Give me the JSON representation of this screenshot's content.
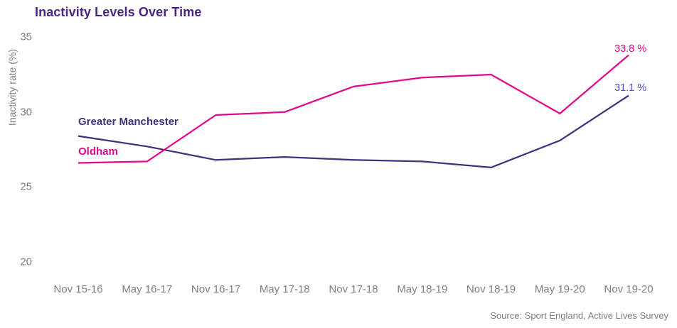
{
  "chart_data": {
    "type": "line",
    "title": "Inactivity Levels Over Time",
    "ylabel": "Inactivity rate (%)",
    "xlabel": "",
    "ylim": [
      20,
      35.5
    ],
    "yticks": [
      35,
      30,
      25,
      20
    ],
    "grid": false,
    "legend_position": "inline-left-of-lines",
    "categories": [
      "Nov 15-16",
      "May 16-17",
      "Nov 16-17",
      "May 17-18",
      "Nov 17-18",
      "May 18-19",
      "Nov 18-19",
      "May 19-20",
      "Nov 19-20"
    ],
    "series": [
      {
        "name": "Greater Manchester",
        "color": "#43307e",
        "label_color": "#43307e",
        "end_label": "31.1 %",
        "end_label_color": "#4d53c3",
        "values": [
          28.4,
          27.7,
          26.8,
          27.0,
          26.8,
          26.7,
          26.3,
          28.1,
          31.1
        ]
      },
      {
        "name": "Oldham",
        "color": "#e2078c",
        "label_color": "#e2078c",
        "end_label": "33.8 %",
        "end_label_color": "#e2078c",
        "values": [
          26.6,
          26.7,
          29.8,
          30.0,
          31.7,
          32.3,
          32.5,
          29.9,
          33.8
        ]
      }
    ],
    "source": "Source: Sport England, Active Lives Survey",
    "colors": {
      "title": "#4b2583",
      "axis_text": "#7f7f7f"
    }
  }
}
